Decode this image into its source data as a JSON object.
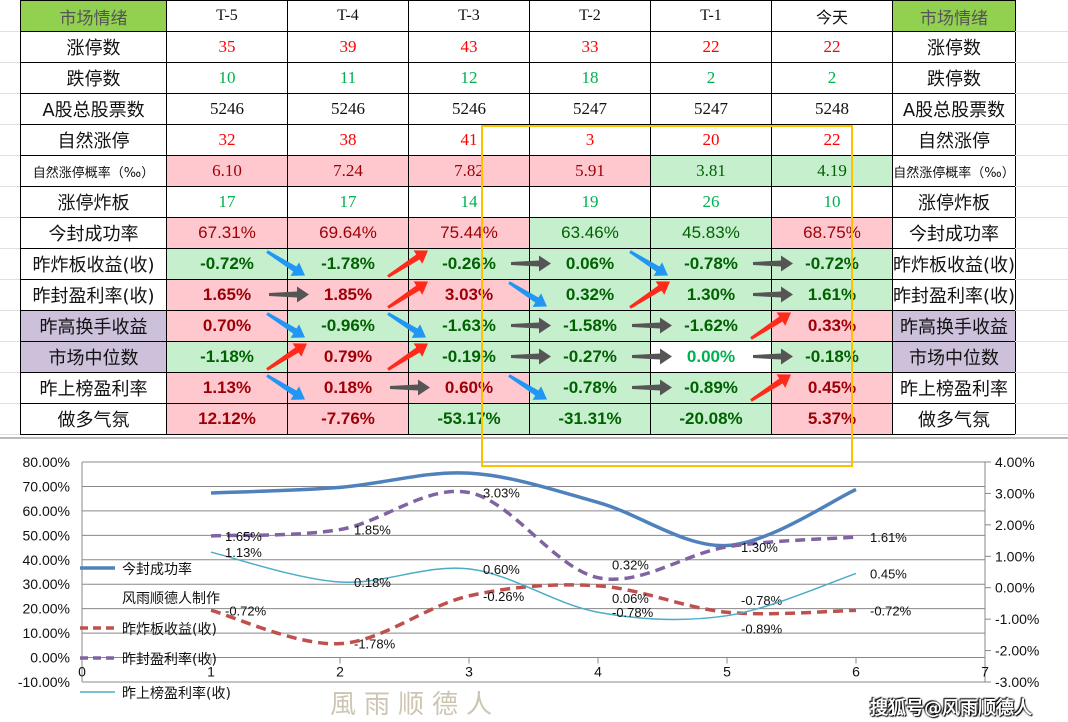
{
  "watermark": "搜狐号@风雨顺德人",
  "chart_watermark": "風雨顺德人",
  "table": {
    "header": [
      "市场情绪",
      "T-5",
      "T-4",
      "T-3",
      "T-2",
      "T-1",
      "今天",
      "市场情绪"
    ],
    "rows": [
      {
        "label": "涨停数",
        "values": [
          "35",
          "39",
          "43",
          "33",
          "22",
          "22"
        ],
        "styles": [
          "t-red",
          "t-red",
          "t-red",
          "t-red",
          "t-red",
          "t-red"
        ],
        "font": "serif"
      },
      {
        "label": "跌停数",
        "values": [
          "10",
          "11",
          "12",
          "18",
          "2",
          "2"
        ],
        "styles": [
          "t-green",
          "t-green",
          "t-green",
          "t-green",
          "t-green",
          "t-green"
        ],
        "font": "serif"
      },
      {
        "label": "A股总股票数",
        "values": [
          "5246",
          "5246",
          "5246",
          "5247",
          "5247",
          "5248"
        ],
        "styles": [
          "t-black",
          "t-black",
          "t-black",
          "t-black",
          "t-black",
          "t-black"
        ],
        "font": "serif"
      },
      {
        "label": "自然涨停",
        "values": [
          "32",
          "38",
          "41",
          "3",
          "20",
          "22"
        ],
        "styles": [
          "t-red",
          "t-red",
          "t-red",
          "t-red",
          "t-red",
          "t-red"
        ],
        "font": "serif"
      },
      {
        "label": "自然涨停概率（‰）",
        "small": true,
        "values": [
          "6.10",
          "7.24",
          "7.82",
          "5.91",
          "3.81",
          "4.19"
        ],
        "styles": [
          "c-pink",
          "c-pink",
          "c-pink",
          "c-pink",
          "c-green",
          "c-green"
        ],
        "font": "serif"
      },
      {
        "label": "涨停炸板",
        "values": [
          "17",
          "17",
          "14",
          "19",
          "26",
          "10"
        ],
        "styles": [
          "t-green",
          "t-green",
          "t-green",
          "t-green",
          "t-green",
          "t-green"
        ],
        "font": "serif"
      },
      {
        "label": "今封成功率",
        "values": [
          "67.31%",
          "69.64%",
          "75.44%",
          "63.46%",
          "45.83%",
          "68.75%"
        ],
        "styles": [
          "c-pink",
          "c-pink",
          "c-pink",
          "c-green",
          "c-green",
          "c-pink"
        ],
        "font": "reg"
      },
      {
        "label": "昨炸板收益(收)",
        "values": [
          "-0.72%",
          "-1.78%",
          "-0.26%",
          "0.06%",
          "-0.78%",
          "-0.72%"
        ],
        "styles": [
          "c-green",
          "c-green",
          "c-green",
          "c-green",
          "c-green",
          "c-green"
        ],
        "font": "bold",
        "arrows": [
          "down",
          "up",
          "flat",
          "down",
          "flat"
        ]
      },
      {
        "label": "昨封盈利率(收)",
        "values": [
          "1.65%",
          "1.85%",
          "3.03%",
          "0.32%",
          "1.30%",
          "1.61%"
        ],
        "styles": [
          "c-pink",
          "c-pink",
          "c-pink",
          "c-green",
          "c-green",
          "c-green"
        ],
        "font": "bold",
        "arrows": [
          "flat",
          "up",
          "down",
          "up",
          "flat"
        ]
      },
      {
        "label": "昨高换手收益",
        "purple": true,
        "values": [
          "0.70%",
          "-0.96%",
          "-1.63%",
          "-1.58%",
          "-1.62%",
          "0.33%"
        ],
        "styles": [
          "c-pink",
          "c-green",
          "c-green",
          "c-green",
          "c-green",
          "c-pink"
        ],
        "font": "bold",
        "arrows": [
          "down",
          "down",
          "flat",
          "flat",
          "up"
        ]
      },
      {
        "label": "市场中位数",
        "purple": true,
        "values": [
          "-1.18%",
          "0.79%",
          "-0.19%",
          "-0.27%",
          "0.00%",
          "-0.18%"
        ],
        "styles": [
          "c-green",
          "c-pink",
          "c-green",
          "c-green",
          "c-white-green",
          "c-green"
        ],
        "font": "bold",
        "arrows": [
          "up",
          "up",
          "flat",
          "flat",
          "flat"
        ]
      },
      {
        "label": "昨上榜盈利率",
        "values": [
          "1.13%",
          "0.18%",
          "0.60%",
          "-0.78%",
          "-0.89%",
          "0.45%"
        ],
        "styles": [
          "c-pink",
          "c-pink",
          "c-pink",
          "c-green",
          "c-green",
          "c-pink"
        ],
        "font": "bold",
        "arrows": [
          "down",
          "flat",
          "down",
          "flat",
          "up"
        ]
      },
      {
        "label": "做多气氛",
        "values": [
          "12.12%",
          "-7.76%",
          "-53.17%",
          "-31.31%",
          "-20.08%",
          "5.37%"
        ],
        "styles": [
          "c-pink",
          "c-pink",
          "c-green",
          "c-green",
          "c-green",
          "c-pink"
        ],
        "font": "bold"
      }
    ]
  },
  "arrow_colors": {
    "up": "#ff2a1a",
    "down": "#2196f3",
    "flat": "#555555"
  },
  "chart_data": {
    "type": "line",
    "x": [
      1,
      2,
      3,
      4,
      5,
      6
    ],
    "xlim": [
      0,
      7
    ],
    "x_ticks": [
      "0",
      "1",
      "2",
      "3",
      "4",
      "5",
      "6",
      "7"
    ],
    "y_left_lim": [
      -10,
      80
    ],
    "y_left_ticks": [
      "80.00%",
      "70.00%",
      "60.00%",
      "50.00%",
      "40.00%",
      "30.00%",
      "20.00%",
      "10.00%",
      "0.00%",
      "-10.00%"
    ],
    "y_right_lim": [
      -3,
      4
    ],
    "y_right_ticks": [
      "4.00%",
      "3.00%",
      "2.00%",
      "1.00%",
      "0.00%",
      "-1.00%",
      "-2.00%",
      "-3.00%"
    ],
    "legend_note": "风雨顺德人制作",
    "legend_placement": "left",
    "series": [
      {
        "name": "今封成功率",
        "axis": "left",
        "color": "#4f81bd",
        "style": "solid",
        "values": [
          67.31,
          69.64,
          75.44,
          63.46,
          45.83,
          68.75
        ],
        "labels": []
      },
      {
        "name": "昨炸板收益(收)",
        "axis": "right",
        "color": "#c0504d",
        "style": "dashed",
        "values": [
          -0.72,
          -1.78,
          -0.26,
          0.06,
          -0.78,
          -0.72
        ],
        "labels": [
          "-0.72%",
          "-1.78%",
          "-0.26%",
          "0.06%",
          "-0.78%",
          "-0.72%"
        ]
      },
      {
        "name": "昨封盈利率(收)",
        "axis": "right",
        "color": "#8064a2",
        "style": "dashed",
        "values": [
          1.65,
          1.85,
          3.03,
          0.32,
          1.3,
          1.61
        ],
        "labels": [
          "1.65%",
          "1.85%",
          "3.03%",
          "0.32%",
          "1.30%",
          "1.61%"
        ]
      },
      {
        "name": "昨上榜盈利率(收)",
        "axis": "right",
        "color": "#4bacc6",
        "style": "thin",
        "values": [
          1.13,
          0.18,
          0.6,
          -0.78,
          -0.89,
          0.45
        ],
        "labels": [
          "1.13%",
          "0.18%",
          "0.60%",
          "-0.78%",
          "-0.89%",
          "0.45%"
        ]
      }
    ]
  }
}
